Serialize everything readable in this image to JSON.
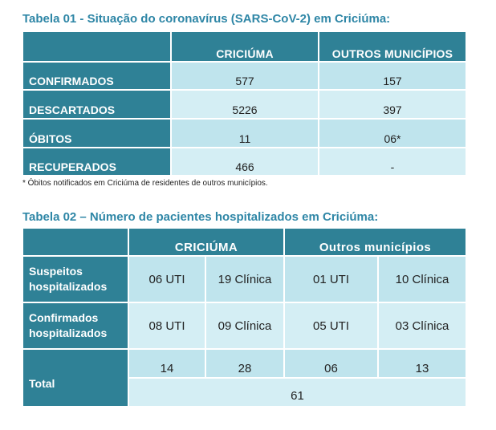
{
  "table1": {
    "title": "Tabela 01 - Situação do coronavírus (SARS-CoV-2) em Criciúma:",
    "headers": [
      "CRICIÚMA",
      "OUTROS MUNICÍPIOS"
    ],
    "rows": [
      {
        "label": "CONFIRMADOS",
        "criciuma": "577",
        "outros": "157"
      },
      {
        "label": "DESCARTADOS",
        "criciuma": "5226",
        "outros": "397"
      },
      {
        "label": "ÓBITOS",
        "criciuma": "11",
        "outros": "06*"
      },
      {
        "label": "RECUPERADOS",
        "criciuma": "466",
        "outros": "-"
      }
    ],
    "footnote": "* Óbitos notificados em Criciúma de residentes de outros municípios."
  },
  "table2": {
    "title": "Tabela 02 – Número de pacientes hospitalizados em Criciúma:",
    "headers": [
      "CRICIÚMA",
      "Outros municípios"
    ],
    "rows": [
      {
        "label": "Suspeitos hospitalizados",
        "c_uti": "06 UTI",
        "c_clinica": "19 Clínica",
        "o_uti": "01 UTI",
        "o_clinica": "10 Clínica"
      },
      {
        "label": "Confirmados hospitalizados",
        "c_uti": "08 UTI",
        "c_clinica": "09 Clínica",
        "o_uti": "05 UTI",
        "o_clinica": "03 Clínica"
      }
    ],
    "total": {
      "label": "Total",
      "c_uti": "14",
      "c_clinica": "28",
      "o_uti": "06",
      "o_clinica": "13",
      "grand": "61"
    }
  }
}
